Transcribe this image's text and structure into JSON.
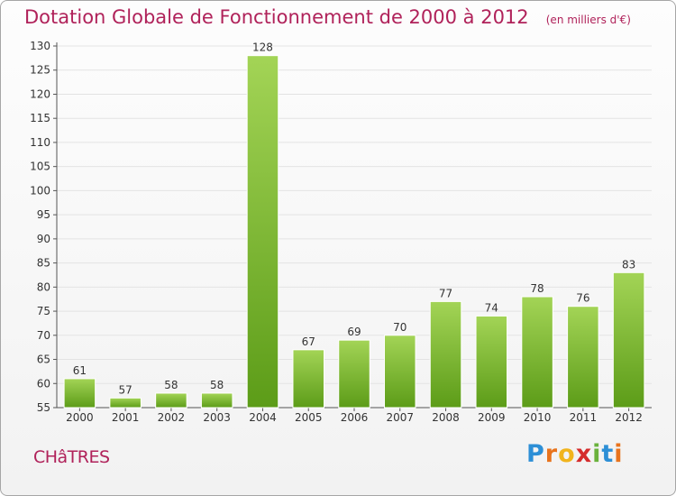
{
  "header": {
    "title": "Dotation Globale de Fonctionnement de 2000 à 2012",
    "subtitle": "(en milliers d'€)"
  },
  "footer": {
    "place": "CHâTRES",
    "logo_text": "Proxiti"
  },
  "colors": {
    "title": "#b0225a",
    "bar_top": "#9fd152",
    "bar_bottom": "#5e9e1a",
    "axis_text": "#333333",
    "grid": "#e3e3e3"
  },
  "chart_data": {
    "type": "bar",
    "title": "Dotation Globale de Fonctionnement de 2000 à 2012",
    "subtitle": "(en milliers d'€)",
    "categories": [
      "2000",
      "2001",
      "2002",
      "2003",
      "2004",
      "2005",
      "2006",
      "2007",
      "2008",
      "2009",
      "2010",
      "2011",
      "2012"
    ],
    "values": [
      61,
      57,
      58,
      58,
      128,
      67,
      69,
      70,
      77,
      74,
      78,
      76,
      83
    ],
    "ylim": [
      55,
      130
    ],
    "yticks": [
      55,
      60,
      65,
      70,
      75,
      80,
      85,
      90,
      95,
      100,
      105,
      110,
      115,
      120,
      125,
      130
    ],
    "grid": true,
    "data_labels": true
  }
}
